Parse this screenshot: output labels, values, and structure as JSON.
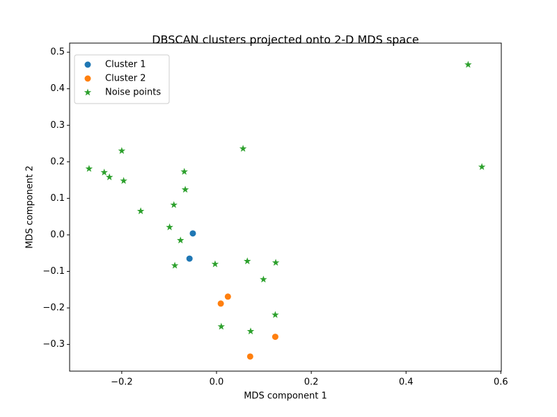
{
  "chart_data": {
    "type": "scatter",
    "title": "DBSCAN clusters projected onto 2-D MDS space",
    "x_label": "MDS component 1",
    "y_label": "MDS component 2",
    "xlim": [
      -0.31,
      0.601
    ],
    "ylim": [
      -0.373,
      0.525
    ],
    "xticks": [
      {
        "value": -0.2,
        "label": "−0.2"
      },
      {
        "value": 0,
        "label": "0.0"
      },
      0.2,
      0.4,
      0.6
    ],
    "yticks": [
      {
        "value": -0.3,
        "label": "−0.3"
      },
      {
        "value": -0.2,
        "label": "−0.2"
      },
      {
        "value": -0.1,
        "label": "−0.1"
      },
      {
        "value": 0,
        "label": "0.0"
      },
      0.1,
      0.2,
      0.3,
      0.4,
      0.5
    ],
    "grid": false,
    "legend": "upper left",
    "series": [
      {
        "name": "Cluster 1",
        "color": "#1f77b4",
        "marker": "circle",
        "x": [
          -0.05,
          -0.057
        ],
        "y": [
          0.004,
          -0.065
        ]
      },
      {
        "name": "Cluster 2",
        "color": "#ff7f0e",
        "marker": "circle",
        "x": [
          0.009,
          0.024,
          0.124,
          0.071
        ],
        "y": [
          -0.188,
          -0.169,
          -0.279,
          -0.333
        ]
      },
      {
        "name": "Noise points",
        "color": "#2ca02c",
        "marker": "star",
        "x": [
          0.531,
          0.56,
          0.056,
          -0.2,
          -0.269,
          -0.237,
          -0.226,
          -0.196,
          -0.068,
          -0.066,
          -0.09,
          -0.16,
          -0.099,
          -0.076,
          -0.088,
          -0.003,
          0.065,
          0.125,
          0.099,
          0.124,
          0.01,
          0.072
        ],
        "y": [
          0.466,
          0.186,
          0.236,
          0.23,
          0.181,
          0.171,
          0.158,
          0.148,
          0.173,
          0.124,
          0.082,
          0.065,
          0.021,
          -0.015,
          -0.084,
          -0.08,
          -0.072,
          -0.076,
          -0.122,
          -0.219,
          -0.251,
          -0.264
        ]
      }
    ]
  }
}
